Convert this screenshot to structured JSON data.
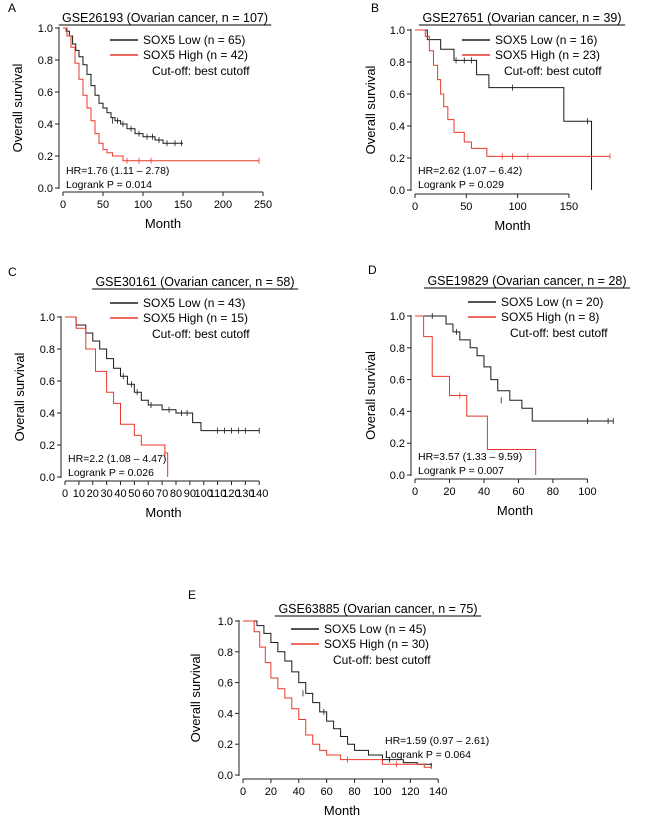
{
  "colors": {
    "low": "#1a1a1a",
    "high": "#e8382b",
    "axis": "#222222"
  },
  "chart_data": [
    {
      "panel": "A",
      "type": "line",
      "title": "GSE26193 (Ovarian cancer, n = 107)",
      "xlabel": "Month",
      "ylabel": "Overall survival",
      "xlim": [
        0,
        250
      ],
      "ylim": [
        0,
        1
      ],
      "xticks": [
        0,
        50,
        100,
        150,
        200,
        250
      ],
      "yticks": [
        "0.0",
        "0.2",
        "0.4",
        "0.6",
        "0.8",
        "1.0"
      ],
      "legend": [
        "SOX5 Low (n = 65)",
        "SOX5 High (n = 42)"
      ],
      "cutoff": "Cut-off: best cutoff",
      "hr": "HR=1.76 (1.11 – 2.78)",
      "logrank": "Logrank P = 0.014",
      "series": [
        {
          "name": "SOX5 Low",
          "steps": [
            [
              0,
              1
            ],
            [
              4,
              0.98
            ],
            [
              8,
              0.95
            ],
            [
              12,
              0.9
            ],
            [
              16,
              0.86
            ],
            [
              20,
              0.82
            ],
            [
              25,
              0.77
            ],
            [
              30,
              0.71
            ],
            [
              35,
              0.64
            ],
            [
              40,
              0.58
            ],
            [
              45,
              0.53
            ],
            [
              50,
              0.5
            ],
            [
              55,
              0.47
            ],
            [
              60,
              0.44
            ],
            [
              65,
              0.42
            ],
            [
              72,
              0.4
            ],
            [
              80,
              0.37
            ],
            [
              90,
              0.34
            ],
            [
              100,
              0.32
            ],
            [
              115,
              0.3
            ],
            [
              125,
              0.28
            ],
            [
              150,
              0.28
            ]
          ],
          "censor": [
            [
              62,
              0.42
            ],
            [
              68,
              0.42
            ],
            [
              75,
              0.4
            ],
            [
              85,
              0.37
            ],
            [
              95,
              0.34
            ],
            [
              105,
              0.32
            ],
            [
              112,
              0.32
            ],
            [
              120,
              0.3
            ],
            [
              130,
              0.28
            ],
            [
              140,
              0.28
            ],
            [
              148,
              0.28
            ]
          ]
        },
        {
          "name": "SOX5 High",
          "steps": [
            [
              0,
              1
            ],
            [
              5,
              0.95
            ],
            [
              10,
              0.88
            ],
            [
              15,
              0.78
            ],
            [
              20,
              0.68
            ],
            [
              25,
              0.58
            ],
            [
              30,
              0.5
            ],
            [
              35,
              0.42
            ],
            [
              40,
              0.34
            ],
            [
              45,
              0.28
            ],
            [
              50,
              0.24
            ],
            [
              55,
              0.22
            ],
            [
              62,
              0.2
            ],
            [
              75,
              0.17
            ],
            [
              245,
              0.17
            ]
          ],
          "censor": [
            [
              80,
              0.17
            ],
            [
              95,
              0.17
            ],
            [
              110,
              0.17
            ],
            [
              245,
              0.17
            ]
          ]
        }
      ]
    },
    {
      "panel": "B",
      "type": "line",
      "title": "GSE27651 (Ovarian cancer, n = 39)",
      "xlabel": "Month",
      "ylabel": "Overall survival",
      "xlim": [
        0,
        190
      ],
      "ylim": [
        0,
        1
      ],
      "xticks": [
        0,
        50,
        100,
        150
      ],
      "yticks": [
        "0.0",
        "0.2",
        "0.4",
        "0.6",
        "0.8",
        "1.0"
      ],
      "legend": [
        "SOX5 Low (n = 16)",
        "SOX5 High (n = 23)"
      ],
      "cutoff": "Cut-off: best cutoff",
      "hr": "HR=2.62 (1.07 – 6.42)",
      "logrank": "Logrank P = 0.029",
      "series": [
        {
          "name": "SOX5 Low",
          "steps": [
            [
              0,
              1
            ],
            [
              12,
              0.94
            ],
            [
              25,
              0.88
            ],
            [
              38,
              0.81
            ],
            [
              60,
              0.72
            ],
            [
              72,
              0.64
            ],
            [
              145,
              0.43
            ],
            [
              172,
              0.0
            ]
          ],
          "censor": [
            [
              40,
              0.81
            ],
            [
              48,
              0.81
            ],
            [
              55,
              0.81
            ],
            [
              95,
              0.64
            ],
            [
              168,
              0.43
            ]
          ]
        },
        {
          "name": "SOX5 High",
          "steps": [
            [
              0,
              1
            ],
            [
              10,
              0.96
            ],
            [
              14,
              0.87
            ],
            [
              18,
              0.78
            ],
            [
              22,
              0.69
            ],
            [
              25,
              0.6
            ],
            [
              28,
              0.52
            ],
            [
              32,
              0.44
            ],
            [
              38,
              0.36
            ],
            [
              48,
              0.3
            ],
            [
              55,
              0.26
            ],
            [
              70,
              0.21
            ],
            [
              190,
              0.21
            ]
          ],
          "censor": [
            [
              85,
              0.21
            ],
            [
              95,
              0.21
            ],
            [
              110,
              0.21
            ],
            [
              190,
              0.21
            ]
          ]
        }
      ]
    },
    {
      "panel": "C",
      "type": "line",
      "title": "GSE30161 (Ovarian cancer, n = 58)",
      "xlabel": "Month",
      "ylabel": "Overall survival",
      "xlim": [
        0,
        142
      ],
      "ylim": [
        0,
        1
      ],
      "xticks": [
        0,
        10,
        20,
        30,
        40,
        50,
        60,
        70,
        80,
        90,
        100,
        110,
        120,
        130,
        140
      ],
      "yticks": [
        "0.0",
        "0.2",
        "0.4",
        "0.6",
        "0.8",
        "1.0"
      ],
      "legend": [
        "SOX5 Low (n = 43)",
        "SOX5 High (n = 15)"
      ],
      "cutoff": "Cut-off: best cutoff",
      "hr": "HR=2.2 (1.08 – 4.47)",
      "logrank": "Logrank P = 0.026",
      "series": [
        {
          "name": "SOX5 Low",
          "steps": [
            [
              0,
              1
            ],
            [
              8,
              0.95
            ],
            [
              15,
              0.9
            ],
            [
              20,
              0.85
            ],
            [
              25,
              0.8
            ],
            [
              30,
              0.74
            ],
            [
              35,
              0.68
            ],
            [
              40,
              0.63
            ],
            [
              45,
              0.58
            ],
            [
              50,
              0.53
            ],
            [
              55,
              0.48
            ],
            [
              60,
              0.45
            ],
            [
              70,
              0.42
            ],
            [
              80,
              0.4
            ],
            [
              92,
              0.34
            ],
            [
              98,
              0.29
            ],
            [
              140,
              0.29
            ]
          ],
          "censor": [
            [
              42,
              0.63
            ],
            [
              48,
              0.58
            ],
            [
              52,
              0.53
            ],
            [
              62,
              0.45
            ],
            [
              75,
              0.42
            ],
            [
              84,
              0.4
            ],
            [
              88,
              0.4
            ],
            [
              110,
              0.29
            ],
            [
              115,
              0.29
            ],
            [
              120,
              0.29
            ],
            [
              125,
              0.29
            ],
            [
              130,
              0.29
            ],
            [
              140,
              0.29
            ]
          ]
        },
        {
          "name": "SOX5 High",
          "steps": [
            [
              0,
              1
            ],
            [
              8,
              0.93
            ],
            [
              15,
              0.8
            ],
            [
              22,
              0.66
            ],
            [
              30,
              0.53
            ],
            [
              35,
              0.46
            ],
            [
              40,
              0.33
            ],
            [
              50,
              0.26
            ],
            [
              55,
              0.2
            ],
            [
              72,
              0.15
            ],
            [
              74,
              0.0
            ]
          ],
          "censor": [
            [
              72,
              0.15
            ]
          ]
        }
      ]
    },
    {
      "panel": "D",
      "type": "line",
      "title": "GSE19829 (Ovarian cancer, n = 28)",
      "xlabel": "Month",
      "ylabel": "Overall survival",
      "xlim": [
        0,
        116
      ],
      "ylim": [
        0,
        1
      ],
      "xticks": [
        0,
        20,
        40,
        60,
        80,
        100
      ],
      "yticks": [
        "0.0",
        "0.2",
        "0.4",
        "0.6",
        "0.8",
        "1.0"
      ],
      "legend": [
        "SOX5 Low (n = 20)",
        "SOX5 High (n = 8)"
      ],
      "cutoff": "Cut-off: best cutoff",
      "hr": "HR=3.57 (1.33 – 9.59)",
      "logrank": "Logrank P = 0.007",
      "series": [
        {
          "name": "SOX5 Low",
          "steps": [
            [
              0,
              1
            ],
            [
              18,
              0.95
            ],
            [
              22,
              0.9
            ],
            [
              26,
              0.85
            ],
            [
              32,
              0.8
            ],
            [
              36,
              0.75
            ],
            [
              40,
              0.68
            ],
            [
              44,
              0.6
            ],
            [
              48,
              0.53
            ],
            [
              55,
              0.47
            ],
            [
              62,
              0.42
            ],
            [
              68,
              0.34
            ],
            [
              115,
              0.34
            ]
          ],
          "censor": [
            [
              10,
              1
            ],
            [
              24,
              0.9
            ],
            [
              50,
              0.47
            ],
            [
              100,
              0.34
            ],
            [
              112,
              0.34
            ],
            [
              115,
              0.34
            ]
          ]
        },
        {
          "name": "SOX5 High",
          "steps": [
            [
              0,
              1
            ],
            [
              5,
              0.87
            ],
            [
              10,
              0.62
            ],
            [
              20,
              0.5
            ],
            [
              30,
              0.37
            ],
            [
              42,
              0.16
            ],
            [
              70,
              0.0
            ]
          ],
          "censor": [
            [
              26,
              0.5
            ]
          ]
        }
      ]
    },
    {
      "panel": "E",
      "type": "line",
      "title": "GSE63885 (Ovarian cancer, n = 75)",
      "xlabel": "Month",
      "ylabel": "Overall survival",
      "xlim": [
        0,
        142
      ],
      "ylim": [
        0,
        1
      ],
      "xticks": [
        0,
        20,
        40,
        60,
        80,
        100,
        120,
        140
      ],
      "yticks": [
        "0.0",
        "0.2",
        "0.4",
        "0.6",
        "0.8",
        "1.0"
      ],
      "legend": [
        "SOX5 Low (n = 45)",
        "SOX5 High (n = 30)"
      ],
      "cutoff": "Cut-off: best cutoff",
      "hr": "HR=1.59 (0.97 – 2.61)",
      "logrank": "Logrank P = 0.064",
      "series": [
        {
          "name": "SOX5 Low",
          "steps": [
            [
              0,
              1
            ],
            [
              10,
              0.97
            ],
            [
              15,
              0.92
            ],
            [
              20,
              0.86
            ],
            [
              25,
              0.8
            ],
            [
              30,
              0.74
            ],
            [
              35,
              0.67
            ],
            [
              40,
              0.6
            ],
            [
              45,
              0.53
            ],
            [
              50,
              0.47
            ],
            [
              55,
              0.41
            ],
            [
              60,
              0.35
            ],
            [
              65,
              0.3
            ],
            [
              70,
              0.25
            ],
            [
              75,
              0.2
            ],
            [
              80,
              0.16
            ],
            [
              90,
              0.13
            ],
            [
              100,
              0.1
            ],
            [
              115,
              0.08
            ],
            [
              125,
              0.07
            ],
            [
              135,
              0.06
            ]
          ],
          "censor": [
            [
              43,
              0.53
            ],
            [
              58,
              0.41
            ],
            [
              105,
              0.1
            ],
            [
              135,
              0.06
            ]
          ]
        },
        {
          "name": "SOX5 High",
          "steps": [
            [
              0,
              1
            ],
            [
              8,
              0.93
            ],
            [
              12,
              0.83
            ],
            [
              16,
              0.73
            ],
            [
              20,
              0.63
            ],
            [
              25,
              0.56
            ],
            [
              30,
              0.5
            ],
            [
              35,
              0.43
            ],
            [
              40,
              0.36
            ],
            [
              45,
              0.26
            ],
            [
              50,
              0.2
            ],
            [
              55,
              0.16
            ],
            [
              60,
              0.13
            ],
            [
              70,
              0.1
            ],
            [
              100,
              0.07
            ],
            [
              130,
              0.05
            ],
            [
              135,
              0.05
            ]
          ],
          "censor": [
            [
              75,
              0.1
            ],
            [
              110,
              0.07
            ]
          ]
        }
      ]
    }
  ]
}
